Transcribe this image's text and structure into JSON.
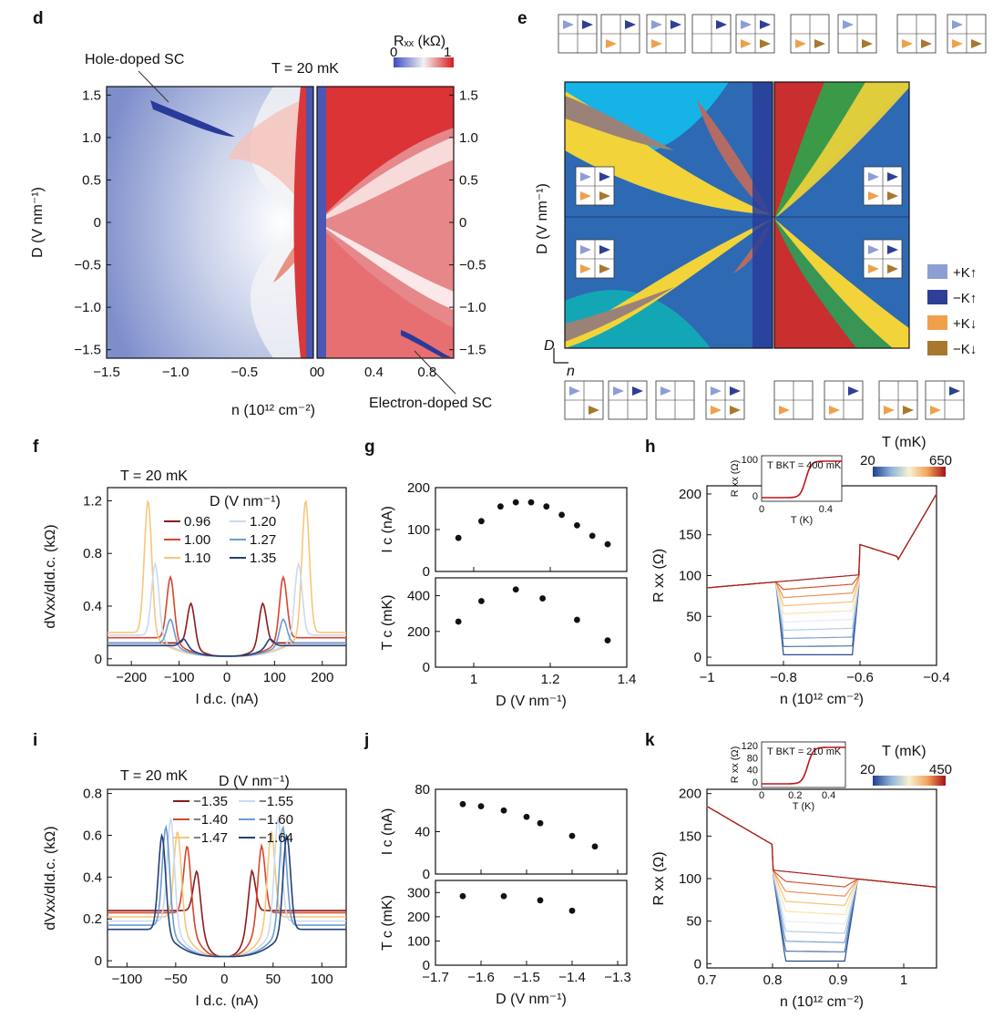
{
  "panels": [
    "d",
    "e",
    "f",
    "g",
    "h",
    "i",
    "j",
    "k"
  ],
  "d": {
    "colorbar_label": "Rₓₓ (kΩ)",
    "colorbar_ticks": [
      "0",
      "1"
    ],
    "temperature": "T = 20 mK",
    "annotation_hole": "Hole-doped SC",
    "annotation_electron": "Electron-doped SC",
    "ylabel": "D (V nm⁻¹)",
    "xlabel": "n (10¹² cm⁻²)",
    "yticks": [
      "1.5",
      "1.0",
      "0.5",
      "0",
      "−0.5",
      "−1.0",
      "−1.5"
    ],
    "xticks_left": [
      "−1.5",
      "−1.0",
      "−0.5",
      "0"
    ],
    "xticks_right": [
      "0",
      "0.4",
      "0.8"
    ]
  },
  "e": {
    "ylabel": "D (V nm⁻¹)",
    "axis_D": "D",
    "axis_n": "n",
    "legend": [
      {
        "label": "+K↑",
        "color": "#8b9fd4"
      },
      {
        "label": "−K↑",
        "color": "#2e3f96"
      },
      {
        "label": "+K↓",
        "color": "#f0a04b"
      },
      {
        "label": "−K↓",
        "color": "#a8782e"
      }
    ]
  },
  "chart_data": [
    {
      "panel": "f",
      "type": "line",
      "title": "T = 20 mK",
      "xlabel": "I d.c. (nA)",
      "ylabel": "dVxx/dId.c. (kΩ)",
      "xlim": [
        -250,
        250
      ],
      "ylim": [
        -0.05,
        1.3
      ],
      "xticks": [
        -200,
        -100,
        0,
        100,
        200
      ],
      "yticks": [
        0,
        0.4,
        0.8,
        1.2
      ],
      "legend_title": "D (V nm⁻¹)",
      "series": [
        {
          "name": "0.96",
          "color": "#8b1a1a",
          "peak_x": 75,
          "peak": 0.42,
          "base": 0.12
        },
        {
          "name": "1.00",
          "color": "#d9452b",
          "peak_x": 118,
          "peak": 0.62,
          "base": 0.16
        },
        {
          "name": "1.10",
          "color": "#f5c77a",
          "peak_x": 165,
          "peak": 1.2,
          "base": 0.2
        },
        {
          "name": "1.20",
          "color": "#c9daf0",
          "peak_x": 150,
          "peak": 0.72,
          "base": 0.18
        },
        {
          "name": "1.27",
          "color": "#6c9bd0",
          "peak_x": 118,
          "peak": 0.3,
          "base": 0.12
        },
        {
          "name": "1.35",
          "color": "#233f7a",
          "peak_x": 90,
          "peak": 0.15,
          "base": 0.1
        }
      ]
    },
    {
      "panel": "g",
      "type": "scatter",
      "xlabel": "D (V nm⁻¹)",
      "xlim": [
        0.9,
        1.4
      ],
      "xticks": [
        1.0,
        1.2,
        1.4
      ],
      "top": {
        "ylabel": "I c (nA)",
        "ylim": [
          0,
          200
        ],
        "yticks": [
          0,
          100,
          200
        ],
        "x": [
          0.96,
          1.02,
          1.07,
          1.11,
          1.15,
          1.19,
          1.23,
          1.27,
          1.31,
          1.35
        ],
        "y": [
          80,
          120,
          155,
          165,
          165,
          155,
          135,
          110,
          85,
          65
        ]
      },
      "bottom": {
        "ylabel": "T c (mK)",
        "ylim": [
          0,
          500
        ],
        "yticks": [
          0,
          200,
          400
        ],
        "x": [
          0.96,
          1.02,
          1.11,
          1.18,
          1.27,
          1.35
        ],
        "y": [
          255,
          370,
          435,
          385,
          265,
          150
        ]
      }
    },
    {
      "panel": "h",
      "type": "line",
      "xlabel": "n (10¹² cm⁻²)",
      "ylabel": "R xx (Ω)",
      "xlim": [
        -1.0,
        -0.4
      ],
      "ylim": [
        -10,
        210
      ],
      "xticks": [
        -1.0,
        -0.8,
        -0.6,
        -0.4
      ],
      "yticks": [
        0,
        50,
        100,
        150,
        200
      ],
      "colorbar_title": "T (mK)",
      "colorbar_range": [
        20,
        650
      ],
      "inset": {
        "label": "T BKT = 400 mK",
        "xlabel": "T (K)",
        "ylabel": "R xx (Ω)",
        "xticks": [
          0,
          0.4
        ],
        "yticks": [
          0,
          100
        ]
      }
    },
    {
      "panel": "i",
      "type": "line",
      "title": "T = 20 mK",
      "xlabel": "I d.c. (nA)",
      "ylabel": "dVxx/dId.c. (kΩ)",
      "xlim": [
        -120,
        125
      ],
      "ylim": [
        -0.03,
        0.82
      ],
      "xticks": [
        -100,
        -50,
        0,
        50,
        100
      ],
      "yticks": [
        0,
        0.2,
        0.4,
        0.6,
        0.8
      ],
      "legend_title": "D (V nm⁻¹)",
      "series": [
        {
          "name": "−1.35",
          "color": "#8b1a1a",
          "peak_x": 28,
          "peak": 0.43,
          "base": 0.24
        },
        {
          "name": "−1.40",
          "color": "#d9452b",
          "peak_x": 38,
          "peak": 0.55,
          "base": 0.23
        },
        {
          "name": "−1.47",
          "color": "#f5c77a",
          "peak_x": 48,
          "peak": 0.62,
          "base": 0.21
        },
        {
          "name": "−1.55",
          "color": "#c9daf0",
          "peak_x": 55,
          "peak": 0.68,
          "base": 0.19
        },
        {
          "name": "−1.60",
          "color": "#6c9bd0",
          "peak_x": 60,
          "peak": 0.64,
          "base": 0.17
        },
        {
          "name": "−1.64",
          "color": "#233f7a",
          "peak_x": 64,
          "peak": 0.6,
          "base": 0.15
        }
      ]
    },
    {
      "panel": "j",
      "type": "scatter",
      "xlabel": "D (V nm⁻¹)",
      "xlim": [
        -1.7,
        -1.28
      ],
      "xticks": [
        -1.7,
        -1.6,
        -1.5,
        -1.4,
        -1.3
      ],
      "top": {
        "ylabel": "I c (nA)",
        "ylim": [
          0,
          80
        ],
        "yticks": [
          0,
          40,
          80
        ],
        "x": [
          -1.64,
          -1.6,
          -1.55,
          -1.5,
          -1.47,
          -1.4,
          -1.35
        ],
        "y": [
          66,
          64,
          60,
          54,
          48,
          36,
          26
        ]
      },
      "bottom": {
        "ylabel": "T c (mK)",
        "ylim": [
          0,
          350
        ],
        "yticks": [
          0,
          100,
          200,
          300
        ],
        "x": [
          -1.64,
          -1.55,
          -1.47,
          -1.4
        ],
        "y": [
          285,
          285,
          268,
          225
        ]
      }
    },
    {
      "panel": "k",
      "type": "line",
      "xlabel": "n (10¹² cm⁻²)",
      "ylabel": "R xx (Ω)",
      "xlim": [
        0.7,
        1.05
      ],
      "ylim": [
        -5,
        205
      ],
      "xticks": [
        0.7,
        0.8,
        0.9,
        1.0
      ],
      "yticks": [
        0,
        50,
        100,
        150,
        200
      ],
      "colorbar_title": "T (mK)",
      "colorbar_range": [
        20,
        450
      ],
      "inset": {
        "label": "T BKT = 210 mK",
        "xlabel": "T (K)",
        "ylabel": "R xx (Ω)",
        "xticks": [
          0,
          0.2,
          0.4
        ],
        "yticks": [
          0,
          40,
          80,
          120
        ]
      }
    }
  ]
}
